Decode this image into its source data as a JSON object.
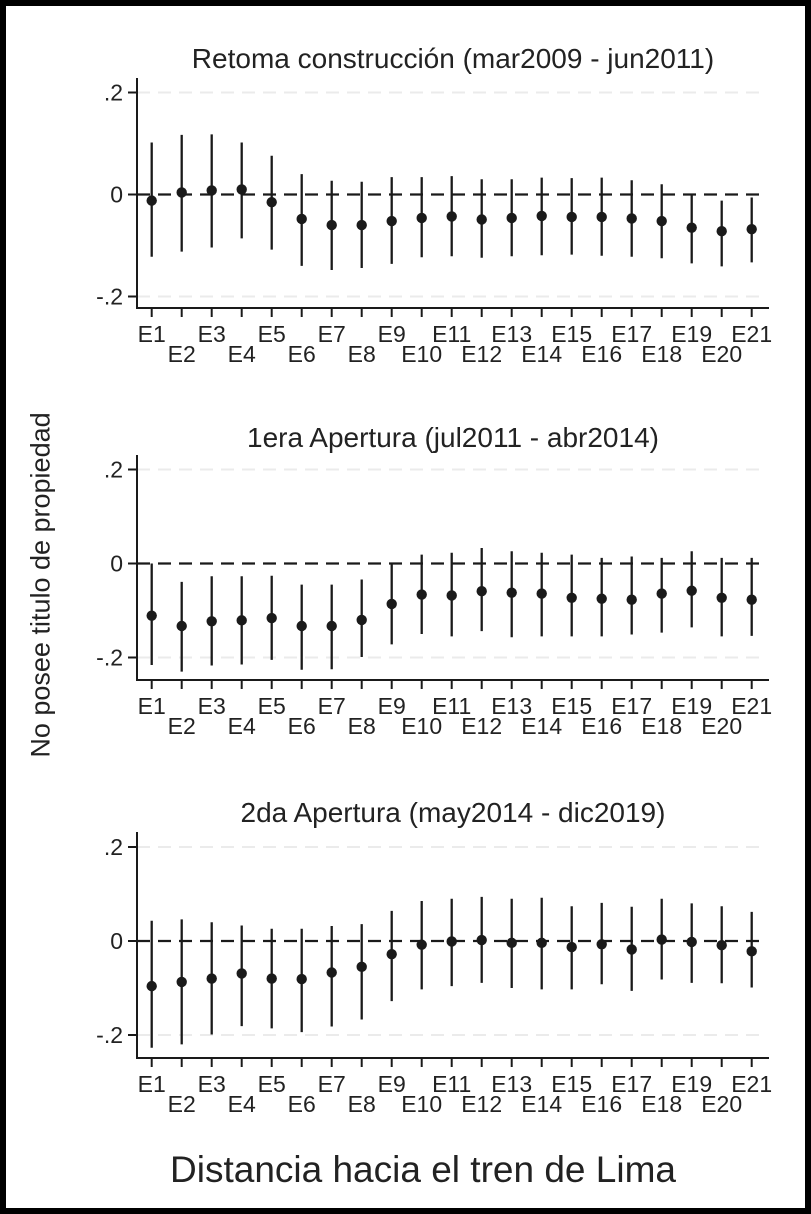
{
  "figure": {
    "ylabel": "No posee titulo de propiedad",
    "xlabel": "Distancia hacia el tren de Lima",
    "background_color": "#ffffff",
    "frame_color": "#000000",
    "ink_color": "#1a1a1a",
    "gridline_color": "#ebebeb"
  },
  "chart_data": [
    {
      "type": "scatter",
      "subtype": "coefficient-plot-with-error-bars",
      "title": "Retoma construcción (mar2009 - jun2011)",
      "categories": [
        "E1",
        "E2",
        "E3",
        "E4",
        "E5",
        "E6",
        "E7",
        "E8",
        "E9",
        "E10",
        "E11",
        "E12",
        "E13",
        "E14",
        "E15",
        "E16",
        "E17",
        "E18",
        "E19",
        "E20",
        "E21"
      ],
      "yticks": {
        "labels": [
          ".2",
          "0",
          "-.2"
        ],
        "values": [
          0.2,
          0,
          -0.2
        ]
      },
      "ylim": [
        -0.225,
        0.225
      ],
      "zero_line": "dashed-black",
      "grid": "light-dashed-at-plus-minus-0.2",
      "legend": "none",
      "series": [
        {
          "name": "estimate",
          "values": [
            -0.012,
            0.004,
            0.008,
            0.01,
            -0.015,
            -0.048,
            -0.06,
            -0.06,
            -0.052,
            -0.046,
            -0.043,
            -0.049,
            -0.046,
            -0.042,
            -0.044,
            -0.044,
            -0.047,
            -0.052,
            -0.065,
            -0.072,
            -0.068
          ]
        },
        {
          "name": "ci_lower",
          "values": [
            -0.122,
            -0.112,
            -0.104,
            -0.086,
            -0.108,
            -0.14,
            -0.148,
            -0.144,
            -0.136,
            -0.123,
            -0.121,
            -0.124,
            -0.121,
            -0.119,
            -0.118,
            -0.12,
            -0.122,
            -0.125,
            -0.135,
            -0.141,
            -0.133
          ]
        },
        {
          "name": "ci_upper",
          "values": [
            0.102,
            0.117,
            0.118,
            0.102,
            0.076,
            0.04,
            0.027,
            0.025,
            0.034,
            0.034,
            0.036,
            0.03,
            0.03,
            0.033,
            0.032,
            0.033,
            0.028,
            0.02,
            0.0,
            -0.012,
            -0.006
          ]
        }
      ]
    },
    {
      "type": "scatter",
      "subtype": "coefficient-plot-with-error-bars",
      "title": "1era Apertura (jul2011 - abr2014)",
      "categories": [
        "E1",
        "E2",
        "E3",
        "E4",
        "E5",
        "E6",
        "E7",
        "E8",
        "E9",
        "E10",
        "E11",
        "E12",
        "E13",
        "E14",
        "E15",
        "E16",
        "E17",
        "E18",
        "E19",
        "E20",
        "E21"
      ],
      "yticks": {
        "labels": [
          ".2",
          "0",
          "-.2"
        ],
        "values": [
          0.2,
          0,
          -0.2
        ]
      },
      "ylim": [
        -0.25,
        0.23
      ],
      "zero_line": "dashed-black",
      "grid": "light-dashed-at-plus-minus-0.2",
      "legend": "none",
      "series": [
        {
          "name": "estimate",
          "values": [
            -0.111,
            -0.133,
            -0.123,
            -0.121,
            -0.116,
            -0.133,
            -0.133,
            -0.12,
            -0.086,
            -0.066,
            -0.068,
            -0.059,
            -0.062,
            -0.064,
            -0.073,
            -0.075,
            -0.077,
            -0.064,
            -0.058,
            -0.073,
            -0.077
          ]
        },
        {
          "name": "ci_lower",
          "values": [
            -0.216,
            -0.23,
            -0.217,
            -0.215,
            -0.205,
            -0.226,
            -0.225,
            -0.199,
            -0.172,
            -0.15,
            -0.155,
            -0.144,
            -0.157,
            -0.155,
            -0.155,
            -0.155,
            -0.151,
            -0.147,
            -0.136,
            -0.155,
            -0.154
          ]
        },
        {
          "name": "ci_upper",
          "values": [
            0.0,
            -0.039,
            -0.027,
            -0.027,
            -0.026,
            -0.045,
            -0.045,
            -0.034,
            0.0,
            0.019,
            0.023,
            0.033,
            0.026,
            0.023,
            0.019,
            0.012,
            0.015,
            0.012,
            0.026,
            0.012,
            0.012
          ]
        }
      ]
    },
    {
      "type": "scatter",
      "subtype": "coefficient-plot-with-error-bars",
      "title": "2da Apertura (may2014 - dic2019)",
      "categories": [
        "E1",
        "E2",
        "E3",
        "E4",
        "E5",
        "E6",
        "E7",
        "E8",
        "E9",
        "E10",
        "E11",
        "E12",
        "E13",
        "E14",
        "E15",
        "E16",
        "E17",
        "E18",
        "E19",
        "E20",
        "E21"
      ],
      "yticks": {
        "labels": [
          ".2",
          "0",
          "-.2"
        ],
        "values": [
          0.2,
          0,
          -0.2
        ]
      },
      "ylim": [
        -0.25,
        0.23
      ],
      "zero_line": "dashed-black",
      "grid": "light-dashed-at-plus-minus-0.2",
      "legend": "none",
      "series": [
        {
          "name": "estimate",
          "values": [
            -0.096,
            -0.087,
            -0.08,
            -0.069,
            -0.08,
            -0.081,
            -0.067,
            -0.055,
            -0.028,
            -0.008,
            -0.001,
            0.002,
            -0.004,
            -0.004,
            -0.013,
            -0.007,
            -0.018,
            0.003,
            -0.002,
            -0.009,
            -0.022
          ]
        },
        {
          "name": "ci_lower",
          "values": [
            -0.227,
            -0.22,
            -0.199,
            -0.181,
            -0.186,
            -0.194,
            -0.182,
            -0.167,
            -0.128,
            -0.103,
            -0.096,
            -0.089,
            -0.1,
            -0.103,
            -0.103,
            -0.092,
            -0.106,
            -0.082,
            -0.089,
            -0.09,
            -0.099
          ]
        },
        {
          "name": "ci_upper",
          "values": [
            0.043,
            0.046,
            0.04,
            0.033,
            0.026,
            0.026,
            0.032,
            0.036,
            0.064,
            0.085,
            0.09,
            0.094,
            0.09,
            0.092,
            0.074,
            0.081,
            0.073,
            0.09,
            0.08,
            0.074,
            0.062
          ]
        }
      ]
    }
  ]
}
